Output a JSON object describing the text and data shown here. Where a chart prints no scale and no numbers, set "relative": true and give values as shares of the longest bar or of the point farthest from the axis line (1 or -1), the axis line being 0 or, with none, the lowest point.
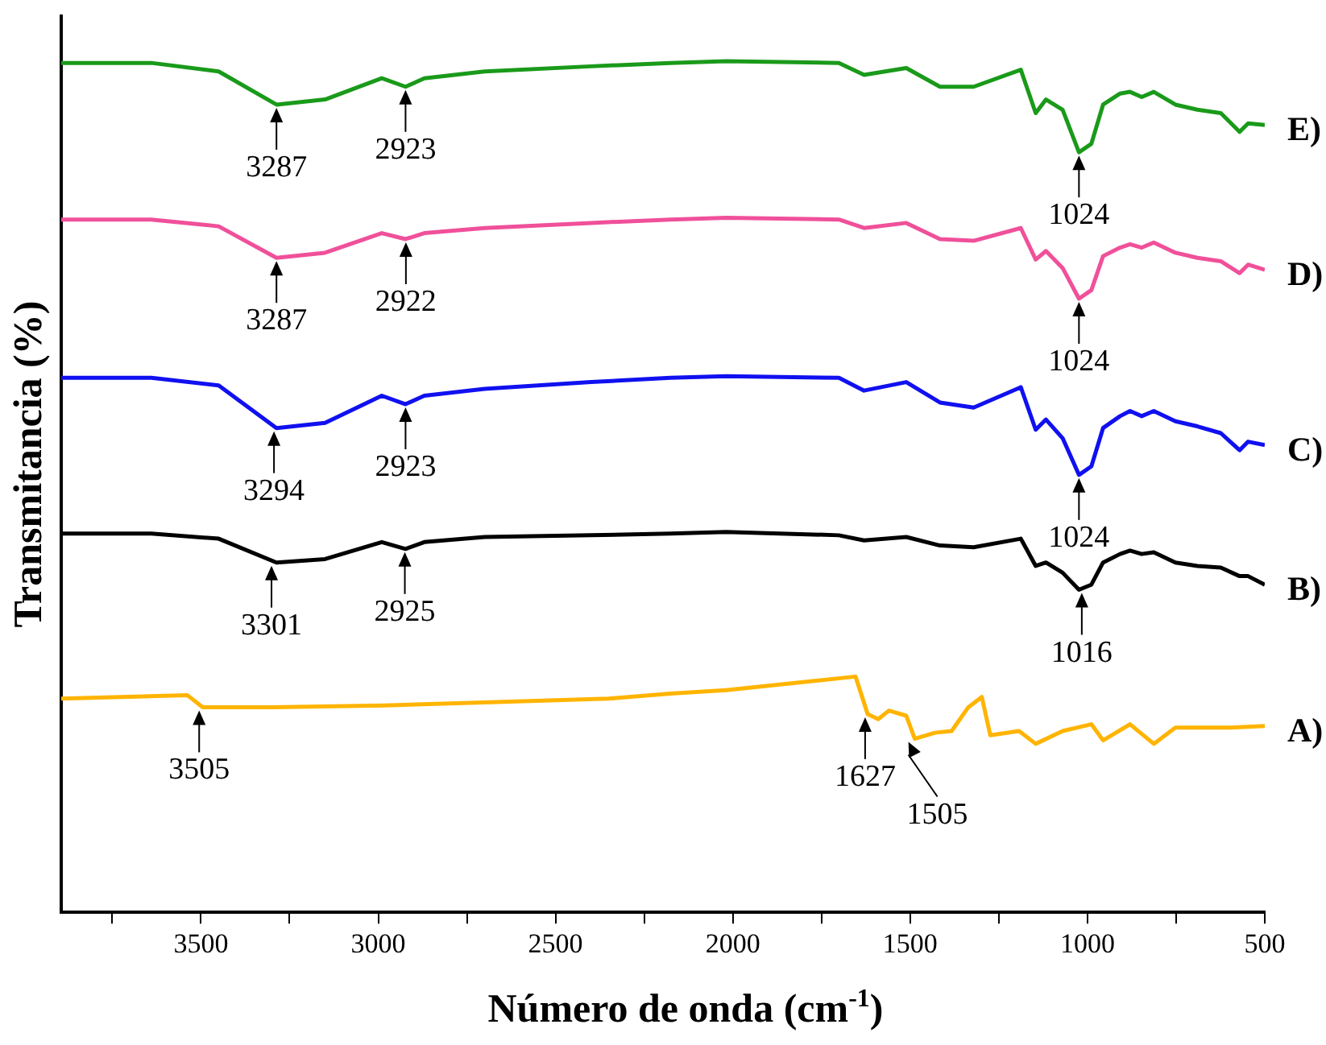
{
  "chart_data": {
    "type": "line",
    "relative": true,
    "xlabel": "Número de onda (cm$^{-1}$)",
    "ylabel": "Transmitancia (%)",
    "xlim": [
      3894,
      500
    ],
    "xticks": [
      {
        "value": 3750,
        "label": null
      },
      3500,
      {
        "value": 3250,
        "label": null
      },
      3000,
      {
        "value": 2750,
        "label": null
      },
      2500,
      {
        "value": 2250,
        "label": null
      },
      2000,
      {
        "value": 1750,
        "label": null
      },
      1500,
      {
        "value": 1250,
        "label": null
      },
      1000,
      {
        "value": 750,
        "label": null
      },
      500
    ],
    "tick_labels": "x",
    "grid": false,
    "legend": false,
    "marker": "none",
    "line_style": "solid",
    "x": [
      3894,
      3640,
      3450,
      3287,
      3150,
      2990,
      2923,
      2870,
      2700,
      2400,
      2176,
      2019,
      1701,
      1630,
      1511,
      1416,
      1321,
      1188,
      1146,
      1117,
      1070,
      1024,
      989,
      956,
      908,
      880,
      847,
      813,
      752,
      690,
      624,
      571,
      547,
      500
    ],
    "series": [
      {
        "name": "E)",
        "color": "#1a9a1a",
        "values": [
          0.998,
          0.998,
          0.988,
          0.949,
          0.955,
          0.98,
          0.97,
          0.98,
          0.988,
          0.994,
          0.998,
          1.0,
          0.998,
          0.984,
          0.992,
          0.97,
          0.97,
          0.99,
          0.939,
          0.955,
          0.943,
          0.893,
          0.903,
          0.949,
          0.962,
          0.964,
          0.958,
          0.964,
          0.949,
          0.943,
          0.939,
          0.917,
          0.927,
          0.925
        ]
      },
      {
        "name": "D)",
        "color": "#f0509a",
        "values": [
          0.814,
          0.814,
          0.806,
          0.769,
          0.775,
          0.798,
          0.791,
          0.798,
          0.804,
          0.81,
          0.814,
          0.816,
          0.814,
          0.804,
          0.81,
          0.791,
          0.789,
          0.804,
          0.767,
          0.777,
          0.757,
          0.721,
          0.731,
          0.771,
          0.781,
          0.785,
          0.781,
          0.787,
          0.775,
          0.769,
          0.765,
          0.751,
          0.761,
          0.755
        ]
      },
      {
        "name": "C)",
        "color": "#1010f0",
        "values": [
          0.628,
          0.628,
          0.619,
          0.569,
          0.575,
          0.607,
          0.597,
          0.607,
          0.615,
          0.623,
          0.628,
          0.63,
          0.628,
          0.613,
          0.623,
          0.599,
          0.593,
          0.617,
          0.567,
          0.579,
          0.557,
          0.514,
          0.524,
          0.569,
          0.583,
          0.589,
          0.583,
          0.589,
          0.577,
          0.571,
          0.563,
          0.543,
          0.553,
          0.549
        ]
      },
      {
        "name": "B)",
        "color": "#000000",
        "values": [
          0.445,
          0.445,
          0.439,
          0.411,
          0.415,
          0.435,
          0.427,
          0.435,
          0.441,
          0.443,
          0.445,
          0.447,
          0.443,
          0.437,
          0.441,
          0.431,
          0.429,
          0.439,
          0.407,
          0.411,
          0.399,
          0.379,
          0.385,
          0.411,
          0.421,
          0.425,
          0.421,
          0.423,
          0.411,
          0.407,
          0.405,
          0.395,
          0.395,
          0.385
        ]
      },
      {
        "name": "A)",
        "color": "#ffb400",
        "x": [
          3894,
          3538,
          3495,
          3300,
          2983,
          2665,
          2351,
          2176,
          2019,
          1654,
          1620,
          1590,
          1560,
          1511,
          1487,
          1430,
          1383,
          1336,
          1298,
          1274,
          1193,
          1146,
          1070,
          989,
          956,
          880,
          813,
          752,
          595,
          500
        ],
        "values": [
          0.251,
          0.255,
          0.241,
          0.241,
          0.243,
          0.247,
          0.251,
          0.257,
          0.261,
          0.277,
          0.233,
          0.227,
          0.237,
          0.231,
          0.204,
          0.211,
          0.213,
          0.241,
          0.253,
          0.208,
          0.213,
          0.198,
          0.213,
          0.221,
          0.202,
          0.221,
          0.198,
          0.217,
          0.217,
          0.219
        ]
      }
    ],
    "annotations": [
      {
        "text": "3287",
        "x": 3287,
        "y": 0.949
      },
      {
        "text": "2923",
        "x": 2923,
        "y": 0.97
      },
      {
        "text": "1024",
        "x": 1024,
        "y": 0.893
      },
      {
        "text": "3287",
        "x": 3287,
        "y": 0.769
      },
      {
        "text": "2922",
        "x": 2922,
        "y": 0.791
      },
      {
        "text": "1024",
        "x": 1024,
        "y": 0.721
      },
      {
        "text": "3294",
        "x": 3294,
        "y": 0.569
      },
      {
        "text": "2923",
        "x": 2923,
        "y": 0.597
      },
      {
        "text": "1024",
        "x": 1024,
        "y": 0.514
      },
      {
        "text": "3301",
        "x": 3301,
        "y": 0.411
      },
      {
        "text": "2925",
        "x": 2925,
        "y": 0.427
      },
      {
        "text": "1016",
        "x": 1016,
        "y": 0.379
      },
      {
        "text": "3505",
        "x": 3505,
        "y": 0.241
      },
      {
        "text": "1627",
        "x": 1627,
        "y": 0.233
      },
      {
        "text": "1505",
        "x": 1505,
        "y": 0.204
      }
    ]
  }
}
